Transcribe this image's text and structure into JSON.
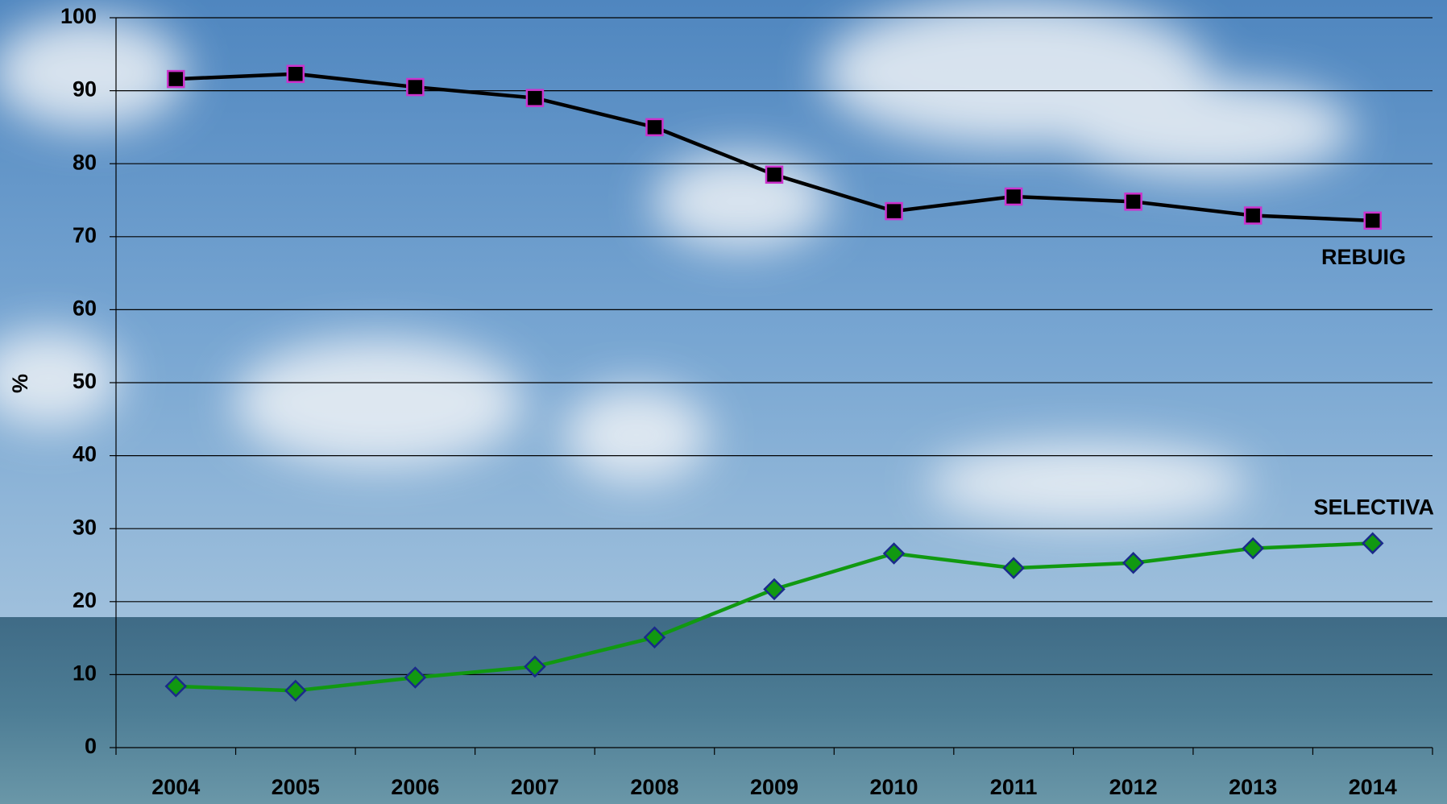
{
  "chart_data": {
    "type": "line",
    "y_label": "%",
    "categories": [
      "2004",
      "2005",
      "2006",
      "2007",
      "2008",
      "2009",
      "2010",
      "2011",
      "2012",
      "2013",
      "2014"
    ],
    "series": [
      {
        "name": "REBUIG",
        "color": "#000000",
        "marker_stroke": "#cc33cc",
        "marker": "square",
        "values": [
          91.6,
          92.3,
          90.5,
          89.0,
          85.0,
          78.5,
          73.5,
          75.5,
          74.8,
          72.9,
          72.2
        ]
      },
      {
        "name": "SELECTIVA",
        "color": "#119911",
        "marker_stroke": "#1a2a8a",
        "marker": "diamond",
        "values": [
          8.4,
          7.8,
          9.6,
          11.1,
          15.1,
          21.7,
          26.6,
          24.6,
          25.3,
          27.3,
          28.0
        ]
      }
    ],
    "ylim": [
      0,
      100
    ],
    "yticks": [
      0,
      10,
      20,
      30,
      40,
      50,
      60,
      70,
      80,
      90,
      100
    ],
    "grid": true
  }
}
